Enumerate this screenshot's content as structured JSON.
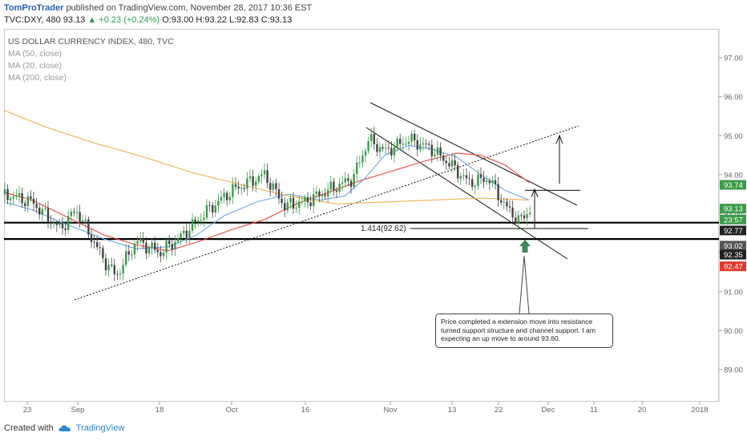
{
  "header": {
    "author": "TomProTrader",
    "published_text": "published on TradingView.com, November 28, 2017 10:36 EST",
    "symbol_line_prefix": "TVC:DXY, 480 93.13",
    "change": "▲ +0.23 (+0.24%)",
    "ohlc": "O:93.00 H:93.22 L:92.83 C:93.13"
  },
  "legend": {
    "title": "US DOLLAR CURRENCY INDEX, 480, TVC",
    "ma1": "MA (50, close)",
    "ma2": "MA (20, close)",
    "ma3": "MA (200, close)"
  },
  "annotation": {
    "fib_label": "1.414(92.62)",
    "callout_text": "Price completed a extension move into resistance turned support structure and channel support. I am expecting an up move to around 93.60."
  },
  "footer": {
    "created_with": "Created with",
    "brand": "TradingView"
  },
  "colors": {
    "bull": "#3d9a4a",
    "bear": "#444444",
    "ma50": "#e84b3c",
    "ma20": "#6ea8e8",
    "ma200": "#f2ad4a",
    "arrow": "#3e8a5a"
  },
  "chart_data": {
    "type": "candlestick",
    "title": "US DOLLAR CURRENCY INDEX, 480, TVC",
    "ylim": [
      88.55,
      97.45
    ],
    "y_ticks": [
      89.0,
      90.0,
      91.0,
      92.0,
      93.0,
      94.0,
      95.0,
      96.0,
      97.0
    ],
    "y_tick_labels": [
      "89.00",
      "90.00",
      "91.00",
      "92.00",
      "93.00",
      "94.00",
      "95.00",
      "96.00",
      "97.00"
    ],
    "x_tick_labels": [
      "23",
      "Sep",
      "18",
      "Oct",
      "16",
      "Nov",
      "13",
      "22",
      "Dec",
      "11",
      "20",
      "2018"
    ],
    "price_badges": [
      {
        "label": "93.74",
        "value": 93.74,
        "color": "#3d9a4a"
      },
      {
        "label": "93.13",
        "value": 93.13,
        "color": "#3d9a4a"
      },
      {
        "label": "23:57",
        "value": 92.85,
        "color": "#3d9a4a"
      },
      {
        "label": "92.77",
        "value": 92.57,
        "color": "#222222"
      },
      {
        "label": "93.02",
        "value": 92.18,
        "color": "#555555"
      },
      {
        "label": "92.35",
        "value": 91.95,
        "color": "#222222"
      },
      {
        "label": "92.47",
        "value": 91.65,
        "color": "#e03a2e"
      }
    ],
    "horizontal_levels": [
      92.77,
      92.35
    ],
    "fib_level": 92.62,
    "target_level": 93.6,
    "series": [
      {
        "name": "MA (50, close)",
        "points": [
          [
            5,
            93.55
          ],
          [
            40,
            93.35
          ],
          [
            80,
            92.95
          ],
          [
            130,
            92.45
          ],
          [
            170,
            92.2
          ],
          [
            210,
            92.05
          ],
          [
            250,
            92.3
          ],
          [
            290,
            92.6
          ],
          [
            330,
            92.85
          ],
          [
            370,
            93.25
          ],
          [
            410,
            93.55
          ],
          [
            450,
            93.85
          ],
          [
            490,
            94.1
          ],
          [
            530,
            94.35
          ],
          [
            570,
            94.55
          ],
          [
            600,
            94.5
          ],
          [
            630,
            94.25
          ],
          [
            660,
            93.8
          ]
        ]
      },
      {
        "name": "MA (20, close)",
        "points": [
          [
            5,
            93.3
          ],
          [
            40,
            93.1
          ],
          [
            80,
            92.75
          ],
          [
            130,
            92.35
          ],
          [
            170,
            92.1
          ],
          [
            210,
            92.15
          ],
          [
            245,
            92.45
          ],
          [
            280,
            92.95
          ],
          [
            320,
            93.3
          ],
          [
            360,
            93.5
          ],
          [
            400,
            93.35
          ],
          [
            430,
            93.45
          ],
          [
            455,
            93.9
          ],
          [
            480,
            94.5
          ],
          [
            510,
            94.75
          ],
          [
            540,
            94.65
          ],
          [
            570,
            94.45
          ],
          [
            600,
            94.0
          ],
          [
            630,
            93.6
          ],
          [
            660,
            93.35
          ]
        ]
      },
      {
        "name": "MA (200, close)",
        "points": [
          [
            5,
            95.65
          ],
          [
            60,
            95.2
          ],
          [
            120,
            94.8
          ],
          [
            180,
            94.45
          ],
          [
            240,
            94.05
          ],
          [
            300,
            93.75
          ],
          [
            360,
            93.45
          ],
          [
            420,
            93.25
          ],
          [
            480,
            93.3
          ],
          [
            540,
            93.35
          ],
          [
            600,
            93.4
          ],
          [
            660,
            93.35
          ]
        ]
      }
    ],
    "ohlc_waypoints": [
      [
        5,
        93.5
      ],
      [
        40,
        93.3
      ],
      [
        75,
        92.6
      ],
      [
        95,
        93.1
      ],
      [
        130,
        91.8
      ],
      [
        145,
        91.4
      ],
      [
        170,
        92.3
      ],
      [
        200,
        92.0
      ],
      [
        225,
        92.4
      ],
      [
        260,
        93.1
      ],
      [
        290,
        93.6
      ],
      [
        330,
        94.0
      ],
      [
        355,
        93.2
      ],
      [
        380,
        93.3
      ],
      [
        410,
        93.6
      ],
      [
        440,
        93.9
      ],
      [
        460,
        94.9
      ],
      [
        480,
        94.6
      ],
      [
        510,
        94.9
      ],
      [
        535,
        94.7
      ],
      [
        560,
        94.3
      ],
      [
        585,
        93.8
      ],
      [
        610,
        93.9
      ],
      [
        630,
        93.2
      ],
      [
        648,
        92.8
      ],
      [
        662,
        93.13
      ]
    ]
  }
}
